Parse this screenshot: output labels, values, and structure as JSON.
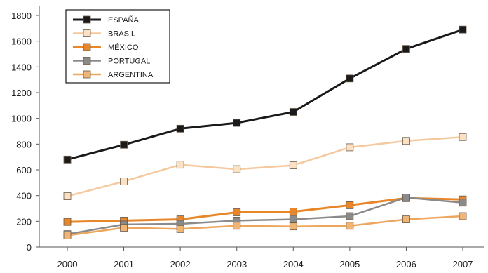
{
  "chart_data": {
    "type": "line",
    "title": "",
    "xlabel": "",
    "ylabel": "",
    "x": [
      "2000",
      "2001",
      "2002",
      "2003",
      "2004",
      "2005",
      "2006",
      "2007"
    ],
    "yticks": [
      "0",
      "200",
      "400",
      "600",
      "800",
      "1000",
      "1200",
      "1400",
      "1600",
      "1800"
    ],
    "ylim": [
      0,
      1800
    ],
    "grid": false,
    "legend_position": "top-left",
    "series": [
      {
        "name": "ESPAÑA",
        "values": [
          680,
          795,
          920,
          965,
          1050,
          1310,
          1540,
          1690
        ],
        "line_color": "#1a1a1a",
        "marker_color": "#1a1a1a",
        "line_width": 3
      },
      {
        "name": "BRASIL",
        "values": [
          395,
          510,
          640,
          605,
          635,
          775,
          825,
          855
        ],
        "line_color": "#f6c89d",
        "marker_color": "#fbe1c4",
        "line_width": 2.5
      },
      {
        "name": "MÉXICO",
        "values": [
          195,
          205,
          215,
          270,
          275,
          325,
          380,
          370
        ],
        "line_color": "#e8872a",
        "marker_color": "#e8872a",
        "line_width": 3
      },
      {
        "name": "PORTUGAL",
        "values": [
          100,
          175,
          180,
          205,
          215,
          240,
          385,
          345
        ],
        "line_color": "#8a8a8a",
        "marker_color": "#8a8a8a",
        "line_width": 2.5
      },
      {
        "name": "ARGENTINA",
        "values": [
          90,
          150,
          140,
          165,
          160,
          165,
          215,
          240
        ],
        "line_color": "#eda65d",
        "marker_color": "#f0b574",
        "line_width": 2.5
      }
    ]
  }
}
